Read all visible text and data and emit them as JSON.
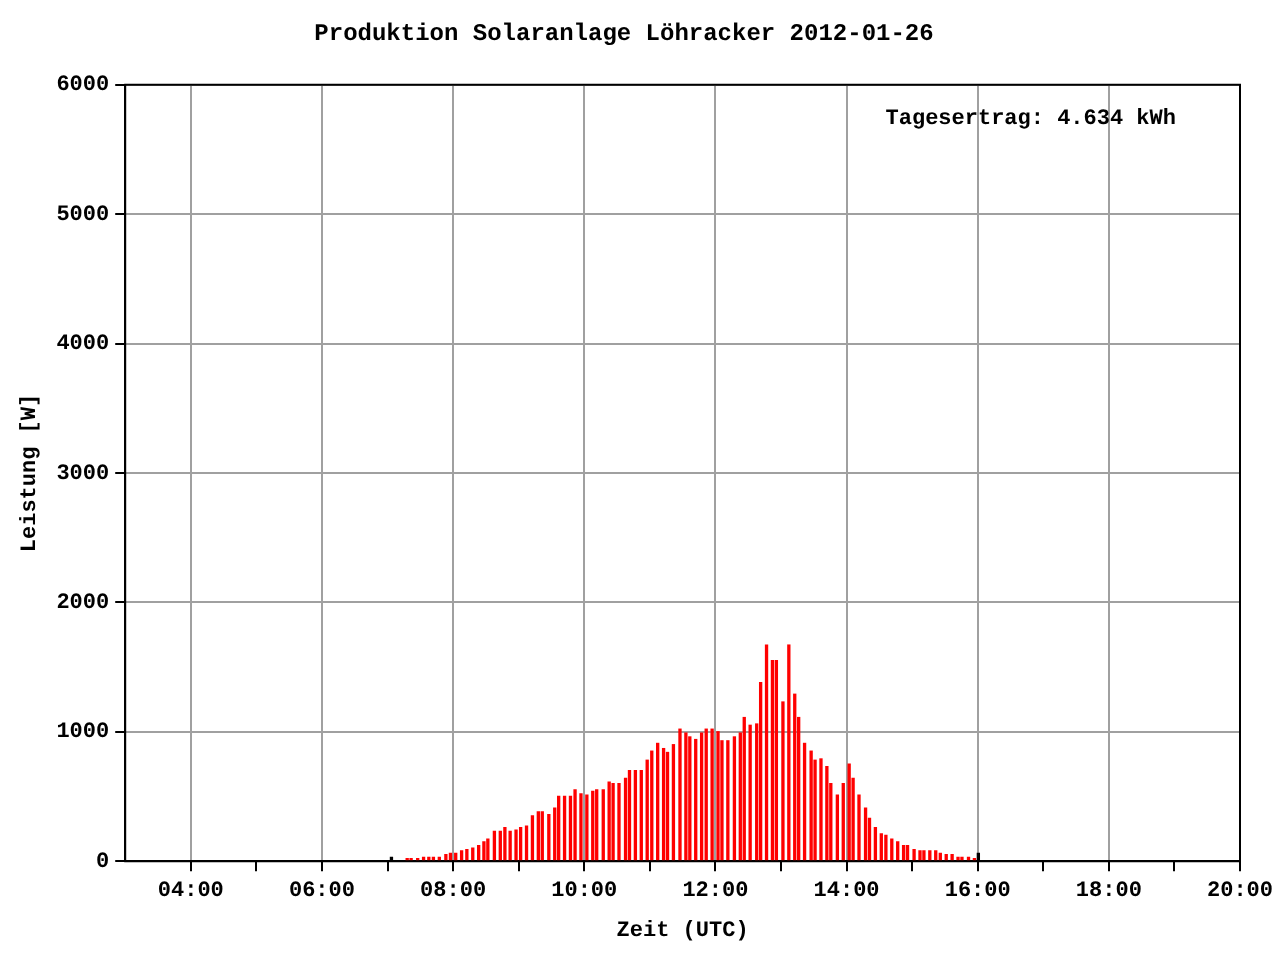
{
  "chart_data": {
    "type": "bar",
    "title": "Produktion Solaranlage Löhracker 2012-01-26",
    "xlabel": "Zeit (UTC)",
    "ylabel": "Leistung [W]",
    "annotations": [
      "Tagesertrag: 4.634 kWh"
    ],
    "x": [
      7.06,
      7.3,
      7.36,
      7.46,
      7.55,
      7.63,
      7.7,
      7.79,
      7.89,
      7.96,
      8.04,
      8.13,
      8.21,
      8.3,
      8.39,
      8.47,
      8.53,
      8.63,
      8.72,
      8.79,
      8.87,
      8.96,
      9.03,
      9.12,
      9.21,
      9.3,
      9.36,
      9.46,
      9.55,
      9.61,
      9.7,
      9.79,
      9.86,
      9.95,
      10.04,
      10.13,
      10.19,
      10.29,
      10.38,
      10.44,
      10.53,
      10.63,
      10.69,
      10.78,
      10.87,
      10.96,
      11.03,
      11.12,
      11.21,
      11.27,
      11.36,
      11.46,
      11.55,
      11.61,
      11.7,
      11.79,
      11.86,
      11.95,
      12.04,
      12.1,
      12.19,
      12.29,
      12.38,
      12.44,
      12.53,
      12.63,
      12.69,
      12.78,
      12.87,
      12.93,
      13.03,
      13.12,
      13.21,
      13.27,
      13.36,
      13.46,
      13.52,
      13.61,
      13.7,
      13.76,
      13.86,
      13.95,
      14.04,
      14.1,
      14.19,
      14.29,
      14.35,
      14.44,
      14.53,
      14.6,
      14.69,
      14.78,
      14.87,
      14.93,
      15.03,
      15.12,
      15.18,
      15.27,
      15.36,
      15.43,
      15.52,
      15.61,
      15.7,
      15.76,
      15.86,
      15.95,
      16.01
    ],
    "values": [
      30,
      20,
      20,
      20,
      30,
      30,
      30,
      30,
      50,
      60,
      60,
      80,
      90,
      100,
      120,
      150,
      170,
      230,
      230,
      260,
      230,
      240,
      260,
      270,
      350,
      380,
      380,
      360,
      410,
      500,
      500,
      500,
      550,
      520,
      510,
      540,
      550,
      550,
      610,
      600,
      600,
      640,
      700,
      700,
      700,
      780,
      850,
      910,
      870,
      840,
      900,
      1020,
      990,
      960,
      940,
      990,
      1020,
      1020,
      1000,
      930,
      930,
      960,
      990,
      1110,
      1050,
      1060,
      1380,
      1670,
      1550,
      1550,
      1230,
      1670,
      1290,
      1110,
      910,
      850,
      780,
      790,
      730,
      600,
      510,
      600,
      750,
      640,
      510,
      410,
      330,
      260,
      210,
      200,
      170,
      150,
      120,
      120,
      90,
      80,
      80,
      80,
      80,
      60,
      50,
      50,
      30,
      30,
      30,
      20,
      60
    ],
    "colors": [
      "#000000",
      "#ff0000",
      "#ff0000",
      "#ff0000",
      "#ff0000",
      "#ff0000",
      "#ff0000",
      "#ff0000",
      "#ff0000",
      "#ff0000",
      "#ff0000",
      "#ff0000",
      "#ff0000",
      "#ff0000",
      "#ff0000",
      "#ff0000",
      "#ff0000",
      "#ff0000",
      "#ff0000",
      "#ff0000",
      "#ff0000",
      "#ff0000",
      "#ff0000",
      "#ff0000",
      "#ff0000",
      "#ff0000",
      "#ff0000",
      "#ff0000",
      "#ff0000",
      "#ff0000",
      "#ff0000",
      "#ff0000",
      "#ff0000",
      "#ff0000",
      "#ff0000",
      "#ff0000",
      "#ff0000",
      "#ff0000",
      "#ff0000",
      "#ff0000",
      "#ff0000",
      "#ff0000",
      "#ff0000",
      "#ff0000",
      "#ff0000",
      "#ff0000",
      "#ff0000",
      "#ff0000",
      "#ff0000",
      "#ff0000",
      "#ff0000",
      "#ff0000",
      "#ff0000",
      "#ff0000",
      "#ff0000",
      "#ff0000",
      "#ff0000",
      "#ff0000",
      "#ff0000",
      "#ff0000",
      "#ff0000",
      "#ff0000",
      "#ff0000",
      "#ff0000",
      "#ff0000",
      "#ff0000",
      "#ff0000",
      "#ff0000",
      "#ff0000",
      "#ff0000",
      "#ff0000",
      "#ff0000",
      "#ff0000",
      "#ff0000",
      "#ff0000",
      "#ff0000",
      "#ff0000",
      "#ff0000",
      "#ff0000",
      "#ff0000",
      "#ff0000",
      "#ff0000",
      "#ff0000",
      "#ff0000",
      "#ff0000",
      "#ff0000",
      "#ff0000",
      "#ff0000",
      "#ff0000",
      "#ff0000",
      "#ff0000",
      "#ff0000",
      "#ff0000",
      "#ff0000",
      "#ff0000",
      "#ff0000",
      "#ff0000",
      "#ff0000",
      "#ff0000",
      "#ff0000",
      "#ff0000",
      "#ff0000",
      "#ff0000",
      "#ff0000",
      "#ff0000",
      "#ff0000",
      "#000000"
    ],
    "xlim": [
      3,
      20
    ],
    "xticks": [
      {
        "value": 4,
        "label": "04:00"
      },
      {
        "value": 5,
        "label": null
      },
      {
        "value": 6,
        "label": "06:00"
      },
      {
        "value": 7,
        "label": null
      },
      {
        "value": 8,
        "label": "08:00"
      },
      {
        "value": 9,
        "label": null
      },
      {
        "value": 10,
        "label": "10:00"
      },
      {
        "value": 11,
        "label": null
      },
      {
        "value": 12,
        "label": "12:00"
      },
      {
        "value": 13,
        "label": null
      },
      {
        "value": 14,
        "label": "14:00"
      },
      {
        "value": 15,
        "label": null
      },
      {
        "value": 16,
        "label": "16:00"
      },
      {
        "value": 17,
        "label": null
      },
      {
        "value": 18,
        "label": "18:00"
      },
      {
        "value": 19,
        "label": null
      },
      {
        "value": 20,
        "label": "20:00"
      }
    ],
    "ylim": [
      0,
      6000
    ],
    "yticks": [
      0,
      1000,
      2000,
      3000,
      4000,
      5000,
      6000
    ],
    "grid": true,
    "legend": false
  }
}
